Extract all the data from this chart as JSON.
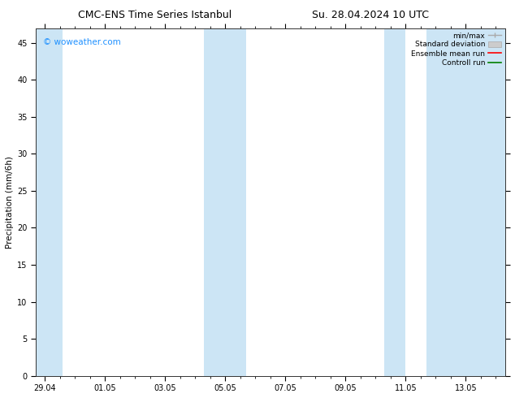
{
  "title_left": "CMC-ENS Time Series Istanbul",
  "title_right": "Su. 28.04.2024 10 UTC",
  "ylabel": "Precipitation (mm/6h)",
  "watermark": "© woweather.com",
  "watermark_color": "#1e90ff",
  "background_color": "#ffffff",
  "plot_bg_color": "#ffffff",
  "ylim": [
    0,
    47
  ],
  "yticks": [
    0,
    5,
    10,
    15,
    20,
    25,
    30,
    35,
    40,
    45
  ],
  "xtick_labels": [
    "29.04",
    "01.05",
    "03.05",
    "05.05",
    "07.05",
    "09.05",
    "11.05",
    "13.05"
  ],
  "xtick_pos": [
    0,
    2,
    4,
    6,
    8,
    10,
    12,
    14
  ],
  "xlim": [
    -0.3,
    15.3
  ],
  "band_color": "#cce5f5",
  "bands": [
    [
      -0.3,
      0.6
    ],
    [
      5.3,
      6.7
    ],
    [
      11.3,
      12.0
    ],
    [
      12.7,
      15.3
    ]
  ],
  "legend_entries": [
    {
      "label": "min/max",
      "type": "errorbar",
      "color": "#aaaaaa"
    },
    {
      "label": "Standard deviation",
      "type": "patch",
      "color": "#cccccc"
    },
    {
      "label": "Ensemble mean run",
      "type": "line",
      "color": "#ff0000"
    },
    {
      "label": "Controll run",
      "type": "line",
      "color": "#008000"
    }
  ],
  "font_size_title": 9,
  "font_size_axis_label": 7.5,
  "font_size_ticks": 7,
  "font_size_legend": 6.5,
  "font_size_watermark": 7.5
}
